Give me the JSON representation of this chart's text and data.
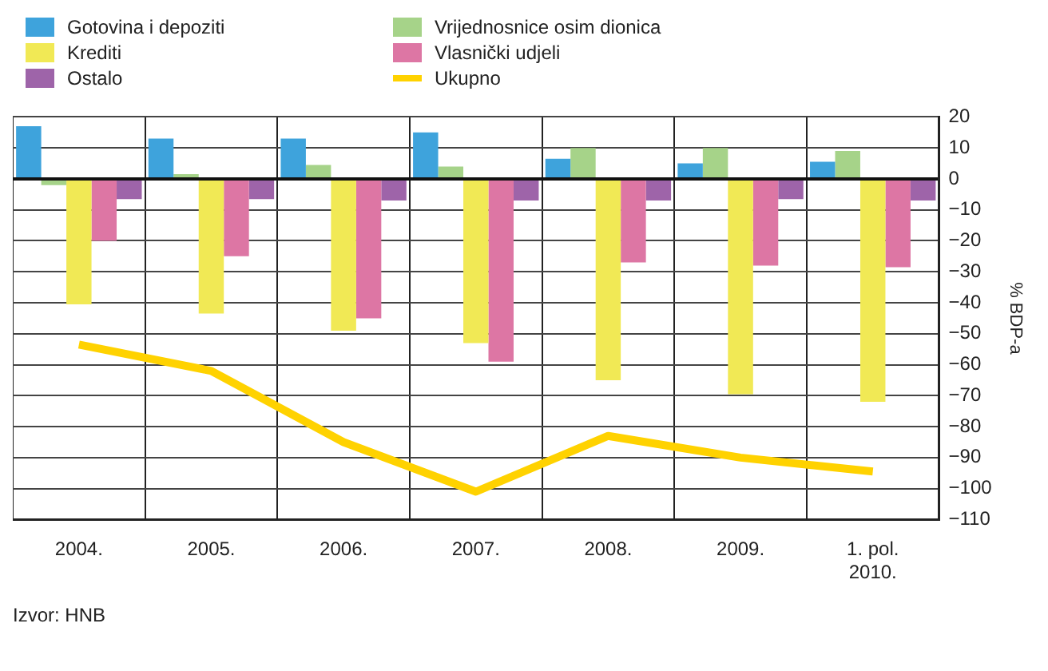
{
  "chart_data": {
    "type": "bar",
    "categories": [
      "2004.",
      "2005.",
      "2006.",
      "2007.",
      "2008.",
      "2009.",
      "1. pol. 2010."
    ],
    "series": [
      {
        "name": "Gotovina i depoziti",
        "color": "#3ea3dc",
        "values": [
          17,
          13,
          13,
          15,
          6.5,
          5,
          5.5
        ]
      },
      {
        "name": "Vrijednosnice osim dionica",
        "color": "#a6d389",
        "values": [
          -2,
          1.5,
          4.5,
          4,
          10,
          10,
          9
        ]
      },
      {
        "name": "Krediti",
        "color": "#f1e955",
        "values": [
          -40.5,
          -43.5,
          -49,
          -53,
          -65,
          -69.5,
          -72
        ]
      },
      {
        "name": "Vlasnički udjeli",
        "color": "#dd76a4",
        "values": [
          -20,
          -25,
          -45,
          -59,
          -27,
          -28,
          -28.5
        ]
      },
      {
        "name": "Ostalo",
        "color": "#9e64a9",
        "values": [
          -6.5,
          -6.5,
          -7,
          -7,
          -7,
          -6.5,
          -7
        ]
      },
      {
        "name": "Ukupno",
        "type": "line",
        "color": "#ffd200",
        "values": [
          -53.5,
          -62,
          -85,
          -101,
          -83,
          -90,
          -94.5
        ]
      }
    ],
    "ylabel": "% BDP-a",
    "ylim": [
      -110,
      20
    ],
    "yticks": [
      20,
      10,
      0,
      -10,
      -20,
      -30,
      -40,
      -50,
      -60,
      -70,
      -80,
      -90,
      -100,
      -110
    ],
    "grid": true,
    "legend": "top left",
    "marker": "none",
    "line_style": "solid",
    "annotations": [
      "Izvor: HNB"
    ]
  }
}
